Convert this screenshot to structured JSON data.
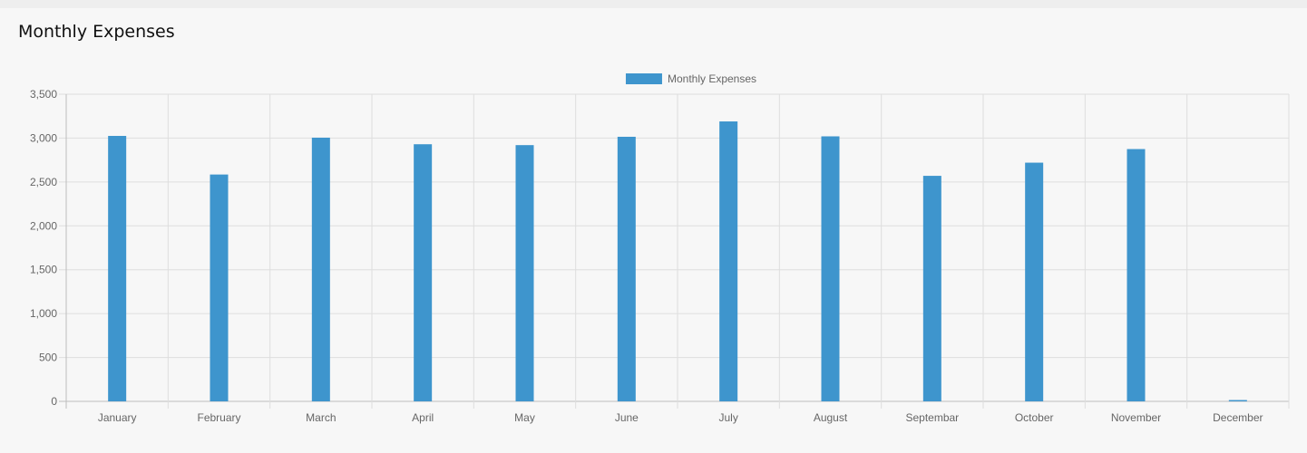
{
  "card": {
    "title": "Monthly Expenses"
  },
  "chart_data": {
    "type": "bar",
    "title": "",
    "xlabel": "",
    "ylabel": "",
    "categories": [
      "January",
      "February",
      "March",
      "April",
      "May",
      "June",
      "July",
      "August",
      "Septembar",
      "October",
      "November",
      "December"
    ],
    "series": [
      {
        "name": "Monthly Expenses",
        "color": "#3e95cd",
        "values": [
          3025,
          2585,
          3005,
          2930,
          2920,
          3015,
          3190,
          3020,
          2570,
          2720,
          2875,
          15
        ]
      }
    ],
    "ylim": [
      0,
      3500
    ],
    "yticks": [
      0,
      500,
      1000,
      1500,
      2000,
      2500,
      3000,
      3500
    ],
    "ytick_labels": [
      "0",
      "500",
      "1,000",
      "1,500",
      "2,000",
      "2,500",
      "3,000",
      "3,500"
    ],
    "grid": true,
    "legend": "top-center"
  }
}
